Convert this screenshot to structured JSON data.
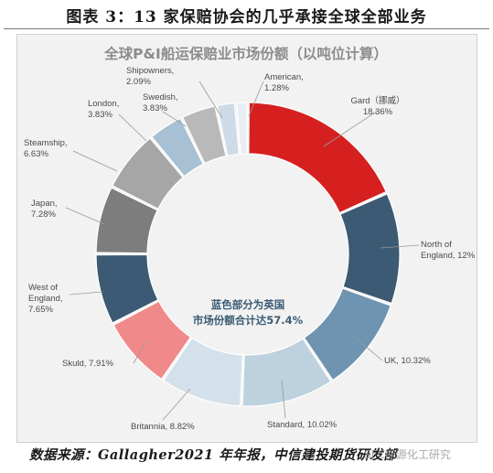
{
  "figure_title": "图表 3：13 家保赔协会的几乎承接全球全部业务",
  "source_note": "数据来源：Gallagher2021 年年报，中信建投期货研发部",
  "watermark": "SFC能源化工研究",
  "chart_data": {
    "type": "pie",
    "title": "全球P&I船运保赔业市场份额（以吨位计算）",
    "center_note": [
      "蓝色部分为英国",
      "市场份额合计达57.4%"
    ],
    "legend": "none",
    "slices": [
      {
        "name": "Gard（挪威）",
        "value": 18.36,
        "label": [
          "Gard（挪威）",
          "18.36%"
        ],
        "color": "#d62020"
      },
      {
        "name": "North of England",
        "value": 12.0,
        "label": [
          "North of",
          "England, 12%"
        ],
        "color": "#3c5a73"
      },
      {
        "name": "UK",
        "value": 10.32,
        "label": [
          "UK, 10.32%"
        ],
        "color": "#6e94b1"
      },
      {
        "name": "Standard",
        "value": 10.02,
        "label": [
          "Standard, 10.02%"
        ],
        "color": "#bdd1df"
      },
      {
        "name": "Britannia",
        "value": 8.82,
        "label": [
          "Britannia, 8.82%"
        ],
        "color": "#d4e1ea"
      },
      {
        "name": "Skuld",
        "value": 7.91,
        "label": [
          "Skuld, 7.91%"
        ],
        "color": "#f08a8a"
      },
      {
        "name": "West of England",
        "value": 7.65,
        "label": [
          "West of",
          "England,",
          "7.65%"
        ],
        "color": "#3c5a73"
      },
      {
        "name": "Japan",
        "value": 7.28,
        "label": [
          "Japan,",
          "7.28%"
        ],
        "color": "#7d7d7d"
      },
      {
        "name": "Steamship",
        "value": 6.63,
        "label": [
          "Steamship,",
          "6.63%"
        ],
        "color": "#a6a6a6"
      },
      {
        "name": "London",
        "value": 3.83,
        "label": [
          "London,",
          "3.83%"
        ],
        "color": "#a7c0d3"
      },
      {
        "name": "Swedish",
        "value": 3.83,
        "label": [
          "Swedish,",
          "3.83%"
        ],
        "color": "#b9b9b9"
      },
      {
        "name": "Shipowners",
        "value": 2.09,
        "label": [
          "Shipowners,",
          "2.09%"
        ],
        "color": "#ccdbe7"
      },
      {
        "name": "American",
        "value": 1.28,
        "label": [
          "American,",
          "1.28%"
        ],
        "color": "#e9eef3"
      }
    ]
  }
}
